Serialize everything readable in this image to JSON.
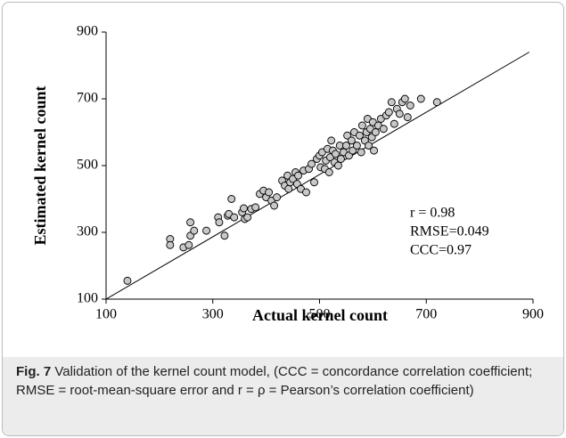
{
  "chart_data": {
    "type": "scatter",
    "xlabel": "Actual kernel count",
    "ylabel": "Estimated kernel count",
    "xlim": [
      100,
      900
    ],
    "ylim": [
      100,
      900
    ],
    "xticks": [
      100,
      300,
      500,
      700,
      900
    ],
    "yticks": [
      100,
      300,
      500,
      700,
      900
    ],
    "color": "#c8c8c8",
    "x": [
      140,
      220,
      220,
      245,
      255,
      258,
      258,
      265,
      288,
      310,
      312,
      322,
      328,
      330,
      335,
      340,
      355,
      358,
      360,
      365,
      372,
      380,
      388,
      395,
      400,
      405,
      410,
      415,
      420,
      430,
      435,
      440,
      442,
      445,
      450,
      455,
      458,
      460,
      465,
      470,
      475,
      480,
      485,
      490,
      495,
      500,
      502,
      505,
      510,
      512,
      515,
      518,
      520,
      522,
      525,
      528,
      530,
      535,
      538,
      540,
      545,
      550,
      552,
      555,
      560,
      562,
      565,
      570,
      575,
      578,
      580,
      585,
      588,
      590,
      592,
      595,
      598,
      600,
      602,
      605,
      610,
      615,
      620,
      625,
      630,
      635,
      640,
      645,
      650,
      655,
      660,
      665,
      670,
      690,
      720
    ],
    "y": [
      155,
      280,
      262,
      255,
      262,
      290,
      330,
      305,
      305,
      345,
      330,
      290,
      350,
      355,
      400,
      345,
      360,
      372,
      340,
      345,
      370,
      375,
      415,
      425,
      405,
      420,
      395,
      380,
      405,
      455,
      440,
      470,
      430,
      450,
      460,
      480,
      445,
      470,
      430,
      485,
      420,
      490,
      505,
      450,
      520,
      530,
      495,
      540,
      490,
      515,
      550,
      480,
      525,
      575,
      545,
      510,
      535,
      500,
      560,
      520,
      540,
      560,
      590,
      530,
      575,
      545,
      600,
      560,
      590,
      540,
      620,
      575,
      600,
      640,
      560,
      610,
      585,
      630,
      545,
      600,
      620,
      640,
      610,
      650,
      660,
      690,
      625,
      670,
      655,
      690,
      700,
      645,
      680,
      700,
      690
    ],
    "fit_line": {
      "x": [
        100,
        893
      ],
      "y": [
        100,
        840
      ]
    },
    "annotations": [
      "r = 0.98",
      "RMSE=0.049",
      "CCC=0.97"
    ]
  },
  "caption": {
    "label": "Fig. 7",
    "text": "Validation of the kernel count model, (CCC = concordance correlation coefficient; RMSE = root-mean-square error and r = ρ = Pearson’s correlation coefficient)"
  }
}
